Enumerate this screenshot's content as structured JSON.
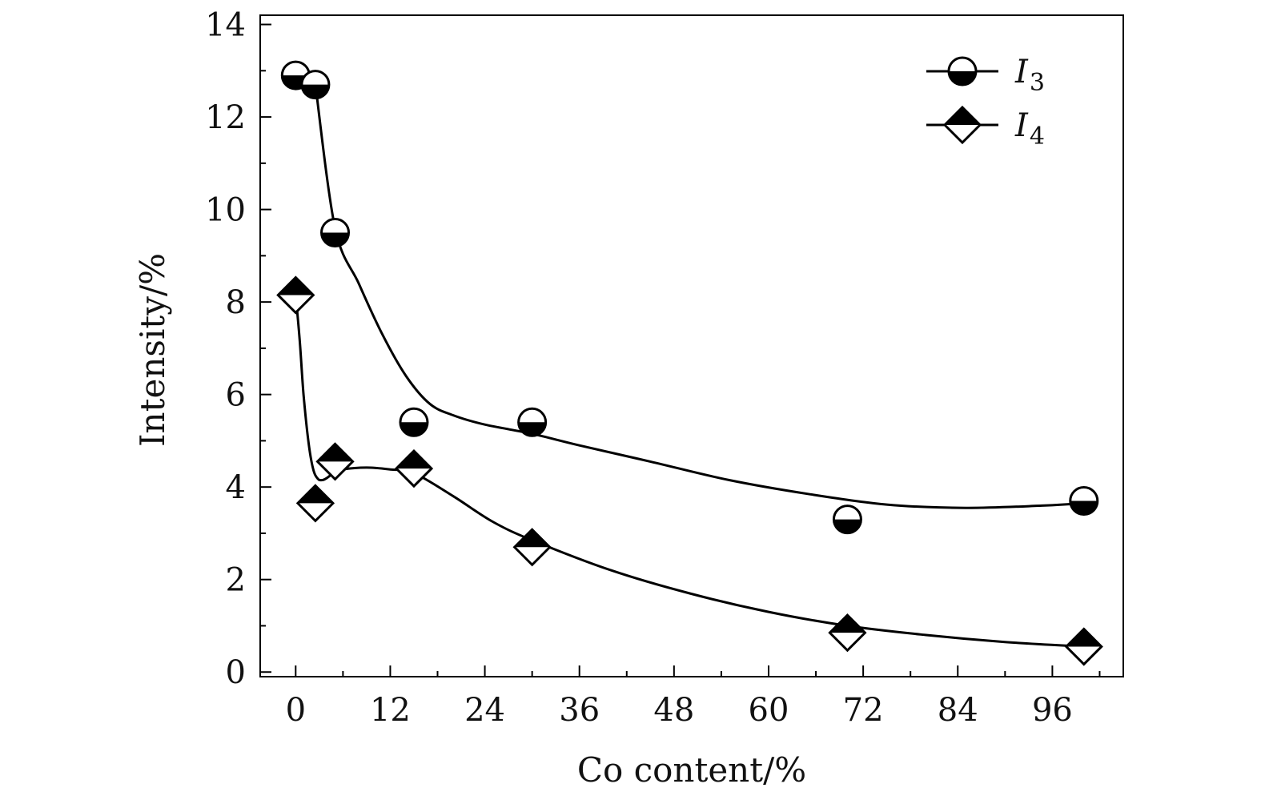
{
  "chart_data": {
    "type": "scatter",
    "title": "",
    "xlabel": "Co content/%",
    "ylabel": "Intensity/%",
    "xlim": [
      -4.5,
      105
    ],
    "ylim": [
      -0.1,
      14.2
    ],
    "xticks": [
      0,
      12,
      24,
      36,
      48,
      60,
      72,
      84,
      96
    ],
    "yticks": [
      0,
      2,
      4,
      6,
      8,
      10,
      12,
      14
    ],
    "legend_position": "top-right",
    "grid": false,
    "series": [
      {
        "name": "I",
        "subscript": "3",
        "marker": "half-filled-circle",
        "color": "#000000",
        "x": [
          0,
          2.5,
          5,
          15,
          30,
          70,
          100
        ],
        "y": [
          12.9,
          12.7,
          9.5,
          5.4,
          5.4,
          3.3,
          3.7
        ],
        "fit_curve": {
          "x": [
            2.5,
            5,
            8,
            11,
            14,
            17,
            20,
            24,
            30,
            36,
            45,
            55,
            65,
            75,
            85,
            95,
            100
          ],
          "y": [
            12.7,
            9.6,
            8.4,
            7.3,
            6.4,
            5.8,
            5.55,
            5.35,
            5.15,
            4.9,
            4.55,
            4.15,
            3.85,
            3.62,
            3.55,
            3.6,
            3.65
          ]
        }
      },
      {
        "name": "I",
        "subscript": "4",
        "marker": "half-filled-diamond",
        "color": "#000000",
        "x": [
          0,
          2.5,
          5,
          15,
          30,
          70,
          100
        ],
        "y": [
          8.15,
          3.65,
          4.55,
          4.4,
          2.7,
          0.85,
          0.55
        ],
        "fit_curve": {
          "x": [
            0,
            0.5,
            1,
            1.6,
            2.2,
            2.8,
            3.4,
            4,
            4.8,
            6,
            9,
            12,
            15,
            20,
            25,
            30,
            40,
            50,
            60,
            70,
            80,
            90,
            100
          ],
          "y": [
            8.15,
            7.2,
            6.0,
            5.0,
            4.4,
            4.18,
            4.15,
            4.2,
            4.3,
            4.38,
            4.42,
            4.38,
            4.3,
            3.8,
            3.25,
            2.85,
            2.2,
            1.7,
            1.3,
            1.0,
            0.8,
            0.65,
            0.55
          ]
        }
      }
    ]
  }
}
